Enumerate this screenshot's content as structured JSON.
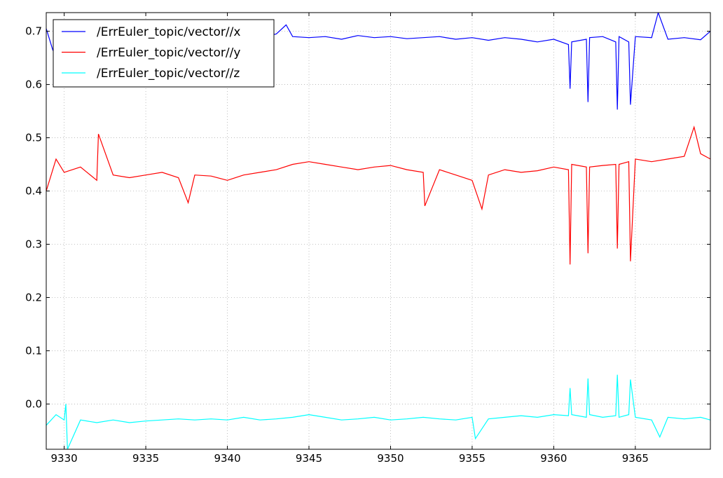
{
  "chart_data": {
    "type": "line",
    "title": "",
    "xlabel": "",
    "ylabel": "",
    "xlim": [
      9328.9,
      9369.6
    ],
    "ylim": [
      -0.085,
      0.735
    ],
    "xticks": [
      9330,
      9335,
      9340,
      9345,
      9350,
      9355,
      9360,
      9365
    ],
    "yticks": [
      0.0,
      0.1,
      0.2,
      0.3,
      0.4,
      0.5,
      0.6,
      0.7
    ],
    "xtick_labels": [
      "9330",
      "9335",
      "9340",
      "9345",
      "9350",
      "9355",
      "9360",
      "9365"
    ],
    "ytick_labels": [
      "0.0",
      "0.1",
      "0.2",
      "0.3",
      "0.4",
      "0.5",
      "0.6",
      "0.7"
    ],
    "grid": true,
    "legend_position": "top-left",
    "series": [
      {
        "name": "/ErrEuler_topic/vector//x",
        "color": "#0000ff",
        "x": [
          9328.9,
          9329.3,
          9330.0,
          9331.0,
          9332.0,
          9333.0,
          9334.0,
          9335.0,
          9336.0,
          9337.0,
          9338.0,
          9339.0,
          9340.0,
          9341.0,
          9342.0,
          9343.0,
          9343.6,
          9344.0,
          9345.0,
          9346.0,
          9347.0,
          9348.0,
          9349.0,
          9350.0,
          9351.0,
          9352.0,
          9353.0,
          9354.0,
          9355.0,
          9356.0,
          9357.0,
          9358.0,
          9359.0,
          9360.0,
          9360.9,
          9361.0,
          9361.1,
          9362.0,
          9362.1,
          9362.2,
          9363.0,
          9363.8,
          9363.9,
          9364.0,
          9364.6,
          9364.7,
          9365.0,
          9366.0,
          9366.4,
          9367.0,
          9368.0,
          9369.0,
          9369.6
        ],
        "values": [
          0.705,
          0.665,
          0.7,
          0.69,
          0.685,
          0.695,
          0.688,
          0.692,
          0.684,
          0.69,
          0.686,
          0.688,
          0.685,
          0.69,
          0.688,
          0.695,
          0.712,
          0.69,
          0.688,
          0.69,
          0.685,
          0.692,
          0.688,
          0.69,
          0.686,
          0.688,
          0.69,
          0.685,
          0.688,
          0.683,
          0.688,
          0.685,
          0.68,
          0.685,
          0.675,
          0.592,
          0.68,
          0.685,
          0.567,
          0.688,
          0.69,
          0.68,
          0.553,
          0.69,
          0.68,
          0.562,
          0.69,
          0.688,
          0.735,
          0.685,
          0.688,
          0.684,
          0.7
        ]
      },
      {
        "name": "/ErrEuler_topic/vector//y",
        "color": "#ff0000",
        "x": [
          9328.9,
          9329.5,
          9330.0,
          9331.0,
          9332.0,
          9332.1,
          9333.0,
          9334.0,
          9335.0,
          9336.0,
          9337.0,
          9337.6,
          9338.0,
          9339.0,
          9340.0,
          9341.0,
          9342.0,
          9343.0,
          9344.0,
          9345.0,
          9346.0,
          9347.0,
          9348.0,
          9349.0,
          9350.0,
          9351.0,
          9352.0,
          9352.1,
          9353.0,
          9354.0,
          9355.0,
          9355.6,
          9356.0,
          9357.0,
          9358.0,
          9359.0,
          9360.0,
          9360.9,
          9361.0,
          9361.1,
          9362.0,
          9362.1,
          9362.2,
          9363.0,
          9363.8,
          9363.9,
          9364.0,
          9364.6,
          9364.7,
          9365.0,
          9366.0,
          9367.0,
          9368.0,
          9368.6,
          9369.0,
          9369.6
        ],
        "values": [
          0.4,
          0.46,
          0.435,
          0.445,
          0.42,
          0.507,
          0.43,
          0.425,
          0.43,
          0.435,
          0.425,
          0.378,
          0.43,
          0.428,
          0.42,
          0.43,
          0.435,
          0.44,
          0.45,
          0.455,
          0.45,
          0.445,
          0.44,
          0.445,
          0.448,
          0.44,
          0.435,
          0.372,
          0.44,
          0.43,
          0.42,
          0.366,
          0.43,
          0.44,
          0.435,
          0.438,
          0.445,
          0.44,
          0.262,
          0.45,
          0.445,
          0.283,
          0.445,
          0.448,
          0.45,
          0.292,
          0.45,
          0.455,
          0.268,
          0.46,
          0.455,
          0.46,
          0.465,
          0.52,
          0.47,
          0.46
        ]
      },
      {
        "name": "/ErrEuler_topic/vector//z",
        "color": "#00ffff",
        "x": [
          9328.9,
          9329.5,
          9330.0,
          9330.1,
          9330.2,
          9331.0,
          9332.0,
          9333.0,
          9334.0,
          9335.0,
          9336.0,
          9337.0,
          9338.0,
          9339.0,
          9340.0,
          9341.0,
          9342.0,
          9343.0,
          9344.0,
          9345.0,
          9346.0,
          9347.0,
          9348.0,
          9349.0,
          9350.0,
          9351.0,
          9352.0,
          9353.0,
          9354.0,
          9355.0,
          9355.2,
          9356.0,
          9357.0,
          9358.0,
          9359.0,
          9360.0,
          9360.9,
          9361.0,
          9361.1,
          9362.0,
          9362.1,
          9362.2,
          9363.0,
          9363.8,
          9363.9,
          9364.0,
          9364.6,
          9364.7,
          9365.0,
          9366.0,
          9366.5,
          9367.0,
          9368.0,
          9369.0,
          9369.6
        ],
        "values": [
          -0.04,
          -0.02,
          -0.03,
          0.0,
          -0.085,
          -0.03,
          -0.035,
          -0.03,
          -0.035,
          -0.032,
          -0.03,
          -0.028,
          -0.03,
          -0.028,
          -0.03,
          -0.025,
          -0.03,
          -0.028,
          -0.025,
          -0.02,
          -0.025,
          -0.03,
          -0.028,
          -0.025,
          -0.03,
          -0.028,
          -0.025,
          -0.028,
          -0.03,
          -0.025,
          -0.065,
          -0.028,
          -0.025,
          -0.022,
          -0.025,
          -0.02,
          -0.022,
          0.03,
          -0.02,
          -0.025,
          0.048,
          -0.02,
          -0.025,
          -0.022,
          0.055,
          -0.025,
          -0.02,
          0.046,
          -0.025,
          -0.03,
          -0.062,
          -0.025,
          -0.028,
          -0.025,
          -0.03
        ]
      }
    ]
  }
}
